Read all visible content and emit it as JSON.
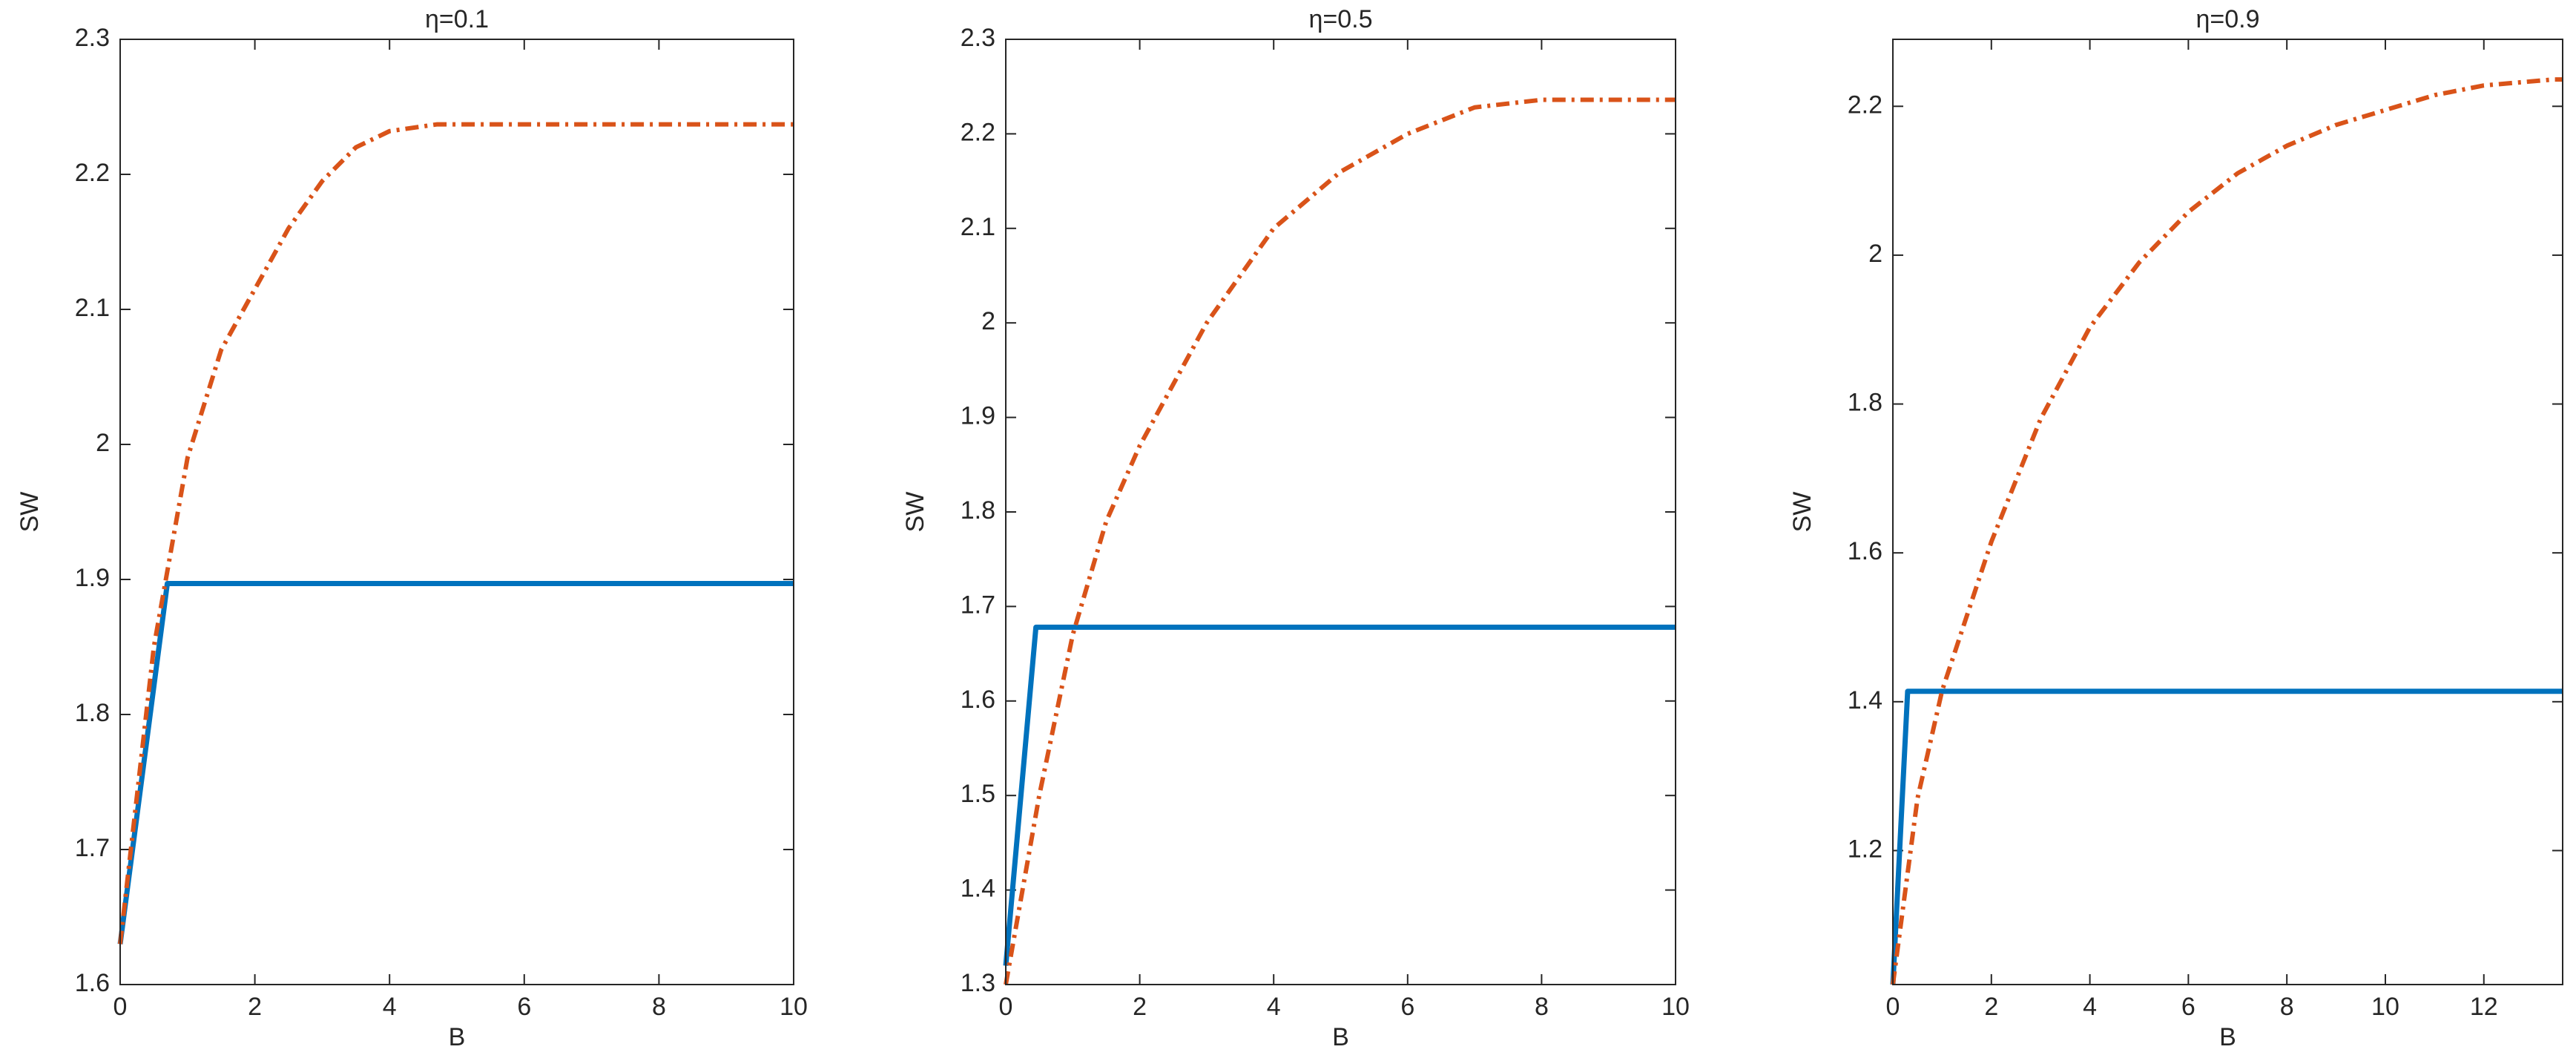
{
  "chart_data": [
    {
      "type": "line",
      "title": "η=0.1",
      "xlabel": "B",
      "ylabel": "SW",
      "xlim": [
        0,
        10
      ],
      "ylim": [
        1.6,
        2.3
      ],
      "xticks": [
        0,
        2,
        4,
        6,
        8,
        10
      ],
      "yticks": [
        1.6,
        1.7,
        1.8,
        1.9,
        2,
        2.1,
        2.2,
        2.3
      ],
      "series": [
        {
          "color": "#0072bd",
          "style": "solid",
          "x": [
            0,
            0.7,
            10
          ],
          "values": [
            1.63,
            1.897,
            1.897
          ]
        },
        {
          "color": "#d95319",
          "style": "dash-dot",
          "x": [
            0,
            0.5,
            1,
            1.5,
            2,
            2.5,
            3,
            3.5,
            4,
            4.7,
            10
          ],
          "values": [
            1.63,
            1.85,
            1.99,
            2.07,
            2.115,
            2.16,
            2.195,
            2.22,
            2.232,
            2.237,
            2.237
          ]
        }
      ]
    },
    {
      "type": "line",
      "title": "η=0.5",
      "xlabel": "B",
      "ylabel": "SW",
      "xlim": [
        0,
        10
      ],
      "ylim": [
        1.3,
        2.3
      ],
      "xticks": [
        0,
        2,
        4,
        6,
        8,
        10
      ],
      "yticks": [
        1.3,
        1.4,
        1.5,
        1.6,
        1.7,
        1.8,
        1.9,
        2,
        2.1,
        2.2,
        2.3
      ],
      "series": [
        {
          "color": "#0072bd",
          "style": "solid",
          "x": [
            0,
            0.45,
            10
          ],
          "values": [
            1.32,
            1.678,
            1.678
          ]
        },
        {
          "color": "#d95319",
          "style": "dash-dot",
          "x": [
            0,
            0.5,
            1,
            1.5,
            2,
            3,
            4,
            5,
            6,
            7,
            8,
            10
          ],
          "values": [
            1.3,
            1.5,
            1.67,
            1.79,
            1.87,
            2.0,
            2.1,
            2.16,
            2.2,
            2.228,
            2.236,
            2.236
          ]
        }
      ]
    },
    {
      "type": "line",
      "title": "η=0.9",
      "xlabel": "B",
      "ylabel": "SW",
      "xlim": [
        0,
        13.6
      ],
      "ylim": [
        1.02,
        2.29
      ],
      "xticks": [
        0,
        2,
        4,
        6,
        8,
        10,
        12
      ],
      "yticks": [
        1.2,
        1.4,
        1.6,
        1.8,
        2,
        2.2
      ],
      "series": [
        {
          "color": "#0072bd",
          "style": "solid",
          "x": [
            0,
            0.3,
            13.6
          ],
          "values": [
            1.02,
            1.414,
            1.414
          ]
        },
        {
          "color": "#d95319",
          "style": "dash-dot",
          "x": [
            0,
            0.5,
            1,
            2,
            3,
            4,
            5,
            6,
            7,
            8,
            9,
            10,
            11,
            12,
            13.4,
            13.6
          ],
          "values": [
            1.02,
            1.27,
            1.415,
            1.615,
            1.78,
            1.903,
            1.99,
            2.058,
            2.11,
            2.147,
            2.175,
            2.195,
            2.215,
            2.228,
            2.236,
            2.236
          ]
        }
      ]
    }
  ]
}
